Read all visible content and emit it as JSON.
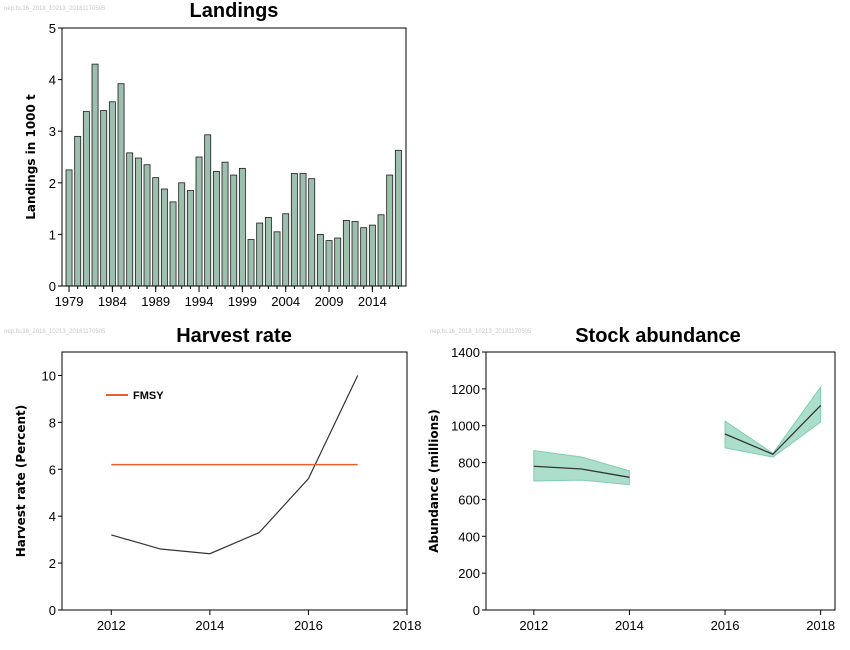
{
  "watermarks": [
    "nep.fu.16_2018_10213_20181170505",
    "nep.fu.16_2018_10213_20181170505",
    "nep.fu.16_2018_10213_20181170505"
  ],
  "colors": {
    "bar_fill": "#9dbfae",
    "band_fill": "#7fcdb1",
    "fmsy_line": "#e8602c",
    "line": "#333333"
  },
  "chart_data": [
    {
      "id": "landings",
      "type": "bar",
      "title": "Landings",
      "xlabel": "",
      "ylabel": "Landings in 1000 t",
      "ylim": [
        0,
        5
      ],
      "yticks": [
        0,
        1,
        2,
        3,
        4,
        5
      ],
      "xtick_labels": [
        "1979",
        "1984",
        "1989",
        "1994",
        "1999",
        "2004",
        "2009",
        "2014"
      ],
      "categories": [
        1979,
        1980,
        1981,
        1982,
        1983,
        1984,
        1985,
        1986,
        1987,
        1988,
        1989,
        1990,
        1991,
        1992,
        1993,
        1994,
        1995,
        1996,
        1997,
        1998,
        1999,
        2000,
        2001,
        2002,
        2003,
        2004,
        2005,
        2006,
        2007,
        2008,
        2009,
        2010,
        2011,
        2012,
        2013,
        2014,
        2015,
        2016,
        2017
      ],
      "values": [
        2.25,
        2.9,
        3.38,
        4.3,
        3.4,
        3.57,
        3.92,
        2.58,
        2.48,
        2.35,
        2.1,
        1.88,
        1.63,
        2.0,
        1.85,
        2.5,
        2.93,
        2.22,
        2.4,
        2.15,
        2.28,
        0.9,
        1.22,
        1.33,
        1.05,
        1.4,
        2.18,
        2.18,
        2.08,
        1.0,
        0.88,
        0.93,
        1.27,
        1.25,
        1.13,
        1.18,
        1.38,
        2.15,
        2.63
      ]
    },
    {
      "id": "harvest",
      "type": "line",
      "title": "Harvest rate",
      "xlabel": "",
      "ylabel": "Harvest rate (Percent)",
      "xlim": [
        2011,
        2018
      ],
      "ylim": [
        0,
        11
      ],
      "xticks": [
        2012,
        2014,
        2016,
        2018
      ],
      "yticks": [
        0,
        2,
        4,
        6,
        8,
        10
      ],
      "series": [
        {
          "name": "",
          "x": [
            2012,
            2013,
            2014,
            2015,
            2016,
            2017
          ],
          "y": [
            3.2,
            2.6,
            2.4,
            3.3,
            5.6,
            10.0
          ]
        },
        {
          "name": "FMSY",
          "x": [
            2012,
            2017
          ],
          "y": [
            6.2,
            6.2
          ]
        }
      ],
      "legend": "top-left"
    },
    {
      "id": "stock",
      "type": "line",
      "title": "Stock abundance",
      "xlabel": "",
      "ylabel": "Abundance (millions)",
      "xlim": [
        2011,
        2018.3
      ],
      "ylim": [
        0,
        1400
      ],
      "xticks": [
        2012,
        2014,
        2016,
        2018
      ],
      "yticks": [
        0,
        200,
        400,
        600,
        800,
        1000,
        1200,
        1400
      ],
      "series": [
        {
          "x": [
            2012,
            2013,
            2014
          ],
          "y": [
            780,
            765,
            720
          ],
          "low": [
            700,
            705,
            680
          ],
          "high": [
            865,
            830,
            755
          ]
        },
        {
          "x": [
            2016,
            2017,
            2018
          ],
          "y": [
            955,
            845,
            1110
          ],
          "low": [
            880,
            830,
            1020
          ],
          "high": [
            1025,
            850,
            1210
          ]
        }
      ]
    }
  ]
}
